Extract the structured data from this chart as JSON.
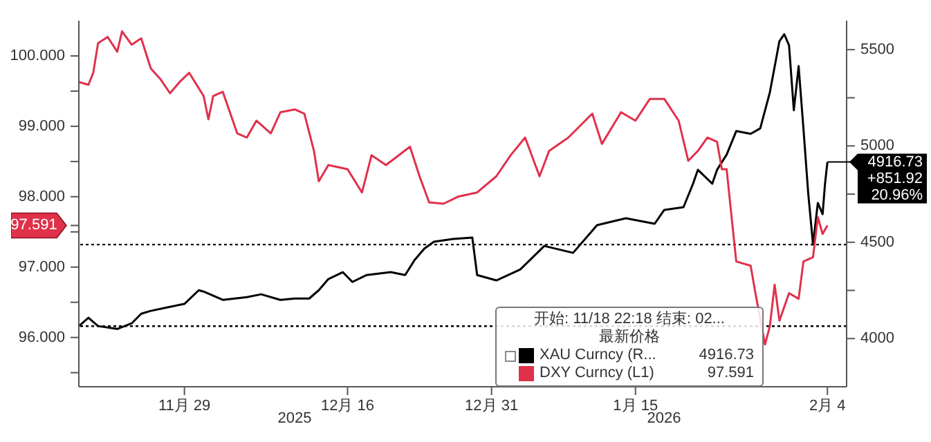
{
  "chart_data": {
    "type": "line",
    "xlim": [
      "2025-11-18",
      "2026-02-06"
    ],
    "xticks": [
      {
        "value": "2025-11-29",
        "label": "11月 29"
      },
      {
        "value": "2025-12-16",
        "label": "12月 16"
      },
      {
        "value": "2025-12-31",
        "label": "12月 31"
      },
      {
        "value": "2026-01-15",
        "label": "1月 15"
      },
      {
        "value": "2026-02-04",
        "label": "2月 4"
      }
    ],
    "ylim": [
      95.3,
      100.5
    ],
    "yticks": [
      {
        "value": 95.5,
        "label": null
      },
      {
        "value": 96,
        "label": "96.000"
      },
      {
        "value": 96.5,
        "label": null
      },
      {
        "value": 97,
        "label": "97.000"
      },
      {
        "value": 97.5,
        "label": null
      },
      {
        "value": 97.591,
        "label": "97.591"
      },
      {
        "value": 98,
        "label": "98.000"
      },
      {
        "value": 98.5,
        "label": null
      },
      {
        "value": 99,
        "label": "99.000"
      },
      {
        "value": 99.5,
        "label": null
      },
      {
        "value": 100,
        "label": "100.000"
      }
    ],
    "y2lim": [
      3750,
      5650
    ],
    "y2ticks": [
      4000,
      {
        "value": 4250,
        "label": null
      },
      4500,
      {
        "value": 4750,
        "label": null
      },
      5000,
      {
        "value": 5250,
        "label": null
      },
      5500
    ],
    "legend": "bottom right",
    "legend_title": "最新价格",
    "marker": "none",
    "line_style": "solid",
    "series": [
      {
        "name": "XAU Curncy (R...",
        "color": "#000000",
        "axis": "y2",
        "x": [
          "2025-11-18",
          "2025-11-19",
          "2025-11-20",
          "2025-11-22",
          "2025-11-23T12:00",
          "2025-11-24T12:00",
          "2025-11-25T12:00",
          "2025-11-27T12:00",
          "2025-11-29",
          "2025-11-30T12:00",
          "2025-12-01",
          "2025-12-03",
          "2025-12-05T12:00",
          "2025-12-07",
          "2025-12-09",
          "2025-12-10T12:00",
          "2025-12-12",
          "2025-12-13",
          "2025-12-14",
          "2025-12-15T12:00",
          "2025-12-16T12:00",
          "2025-12-18",
          "2025-12-20T12:00",
          "2025-12-22",
          "2025-12-23",
          "2025-12-24",
          "2025-12-25",
          "2025-12-27",
          "2025-12-29",
          "2025-12-29T12:00",
          "2025-12-31T12:00",
          "2026-01-03",
          "2026-01-05T12:00",
          "2026-01-08T12:00",
          "2026-01-11",
          "2026-01-14",
          "2026-01-17",
          "2026-01-18",
          "2026-01-20",
          "2026-01-21",
          "2026-01-21T12:00",
          "2026-01-23",
          "2026-01-23T12:00",
          "2026-01-24T12:00",
          "2026-01-25T12:00",
          "2026-01-27",
          "2026-01-28",
          "2026-01-29",
          "2026-01-30",
          "2026-01-30T12:00",
          "2026-01-31",
          "2026-01-31T12:00",
          "2026-02-01",
          "2026-02-01T12:00",
          "2026-02-02",
          "2026-02-02T12:00",
          "2026-02-03",
          "2026-02-03T12:00",
          "2026-02-03T18:00",
          "2026-02-04"
        ],
        "values": [
          4065,
          4108,
          4065,
          4050,
          4079,
          4129,
          4144,
          4165,
          4180,
          4251,
          4244,
          4201,
          4215,
          4230,
          4201,
          4208,
          4208,
          4251,
          4309,
          4345,
          4294,
          4330,
          4345,
          4330,
          4409,
          4467,
          4503,
          4517,
          4524,
          4330,
          4302,
          4359,
          4481,
          4445,
          4589,
          4625,
          4596,
          4668,
          4682,
          4804,
          4876,
          4804,
          4876,
          4955,
          5077,
          5063,
          5091,
          5278,
          5544,
          5580,
          5522,
          5185,
          5414,
          5091,
          4754,
          4488,
          4704,
          4646,
          4804,
          4916.73
        ],
        "value_labels": [
          null,
          null,
          null,
          null,
          null,
          null,
          null,
          null,
          null,
          null,
          null,
          null,
          null,
          null,
          null,
          null,
          null,
          null,
          null,
          null,
          null,
          null,
          null,
          null,
          null,
          null,
          null,
          null,
          null,
          null,
          null,
          null,
          null,
          null,
          null,
          null,
          null,
          null,
          null,
          null,
          null,
          null,
          null,
          null,
          null,
          null,
          null,
          null,
          null,
          null,
          null,
          null,
          null,
          null,
          null,
          null,
          null,
          null,
          null,
          "4916.73"
        ]
      },
      {
        "name": "DXY Curncy (L1)",
        "color": "#e0314b",
        "axis": "y",
        "x": [
          "2025-11-18",
          "2025-11-19",
          "2025-11-19T12:00",
          "2025-11-20",
          "2025-11-21",
          "2025-11-22",
          "2025-11-22T12:00",
          "2025-11-23T12:00",
          "2025-11-24T12:00",
          "2025-11-25T12:00",
          "2025-11-26T12:00",
          "2025-11-27T12:00",
          "2025-11-28T12:00",
          "2025-11-29T12:00",
          "2025-12-01",
          "2025-12-01T12:00",
          "2025-12-02",
          "2025-12-03",
          "2025-12-04T12:00",
          "2025-12-05T12:00",
          "2025-12-06T12:00",
          "2025-12-08",
          "2025-12-09",
          "2025-12-10T12:00",
          "2025-12-11T12:00",
          "2025-12-12T12:00",
          "2025-12-13",
          "2025-12-14",
          "2025-12-16",
          "2025-12-17T12:00",
          "2025-12-18T12:00",
          "2025-12-20",
          "2025-12-22T12:00",
          "2025-12-23T12:00",
          "2025-12-24T12:00",
          "2025-12-26",
          "2025-12-27T12:00",
          "2025-12-29T12:00",
          "2025-12-31T12:00",
          "2026-01-02",
          "2026-01-03T12:00",
          "2026-01-05",
          "2026-01-06",
          "2026-01-08",
          "2026-01-10T12:00",
          "2026-01-11T12:00",
          "2026-01-13T12:00",
          "2026-01-15",
          "2026-01-16T12:00",
          "2026-01-18",
          "2026-01-19T12:00",
          "2026-01-20T12:00",
          "2026-01-21T12:00",
          "2026-01-22T12:00",
          "2026-01-23T12:00",
          "2026-01-24",
          "2026-01-24T12:00",
          "2026-01-25",
          "2026-01-25T12:00",
          "2026-01-27",
          "2026-01-27T12:00",
          "2026-01-28T12:00",
          "2026-01-29",
          "2026-01-29T12:00",
          "2026-01-30",
          "2026-01-31",
          "2026-02-01",
          "2026-02-01T12:00",
          "2026-02-02T12:00",
          "2026-02-03",
          "2026-02-03T12:00",
          "2026-02-04"
        ],
        "values": [
          99.63,
          99.59,
          99.76,
          100.18,
          100.27,
          100.06,
          100.35,
          100.16,
          100.25,
          99.82,
          99.67,
          99.47,
          99.63,
          99.76,
          99.43,
          99.1,
          99.43,
          99.49,
          98.9,
          98.84,
          99.08,
          98.9,
          99.2,
          99.24,
          99.18,
          98.65,
          98.22,
          98.45,
          98.39,
          98.06,
          98.59,
          98.45,
          98.71,
          98.29,
          97.92,
          97.9,
          98.0,
          98.06,
          98.29,
          98.59,
          98.84,
          98.29,
          98.65,
          98.84,
          99.18,
          98.75,
          99.2,
          99.08,
          99.39,
          99.39,
          99.08,
          98.51,
          98.65,
          98.84,
          98.78,
          98.39,
          98.39,
          97.73,
          97.08,
          97.02,
          96.63,
          95.9,
          96.16,
          96.75,
          96.24,
          96.63,
          96.55,
          97.08,
          97.14,
          97.71,
          97.47,
          97.591
        ],
        "value_labels": [
          null,
          null,
          null,
          null,
          null,
          null,
          null,
          null,
          null,
          null,
          null,
          null,
          null,
          null,
          null,
          null,
          null,
          null,
          null,
          null,
          null,
          null,
          null,
          null,
          null,
          null,
          null,
          null,
          null,
          null,
          null,
          null,
          null,
          null,
          null,
          null,
          null,
          null,
          null,
          null,
          null,
          null,
          null,
          null,
          null,
          null,
          null,
          null,
          null,
          null,
          null,
          null,
          null,
          null,
          null,
          null,
          null,
          null,
          null,
          null,
          null,
          null,
          null,
          null,
          null,
          null,
          null,
          null,
          null,
          null,
          null,
          null
        ]
      }
    ],
    "ref_lines": [
      {
        "axis": "y2",
        "value": 4064.81,
        "color": "#000000",
        "line_style": "dotted"
      },
      {
        "axis": "y2",
        "value": 4488,
        "color": "#000000",
        "line_style": "dotted"
      }
    ],
    "annotations": [
      "开始: 11/18 22:18 结束: 02...",
      "+851.92",
      "20.96%",
      "2025",
      "2026",
      "4916.73",
      "97.591"
    ]
  }
}
